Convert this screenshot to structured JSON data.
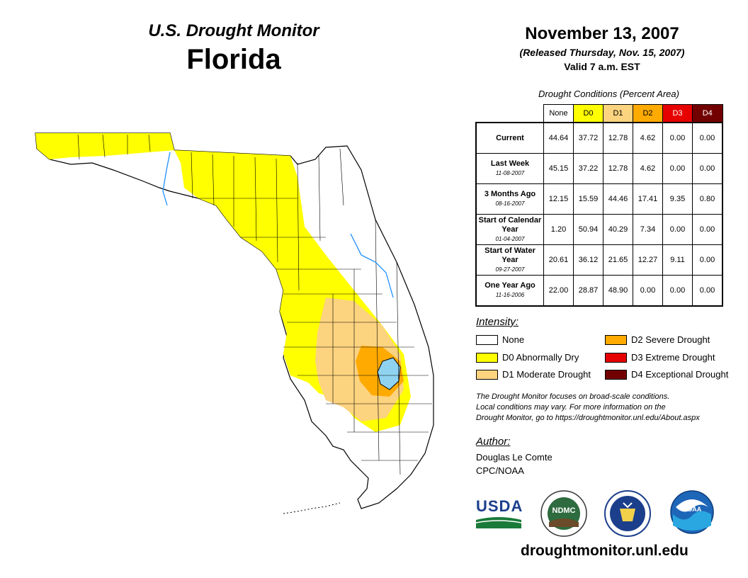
{
  "header": {
    "brand": "U.S. Drought Monitor",
    "state": "Florida",
    "date": "November 13, 2007",
    "released": "(Released Thursday, Nov. 15, 2007)",
    "valid": "Valid 7 a.m. EST"
  },
  "table": {
    "title": "Drought Conditions (Percent Area)",
    "columns": [
      "None",
      "D0",
      "D1",
      "D2",
      "D3",
      "D4"
    ],
    "rows": [
      {
        "label": "Current",
        "date": "",
        "values": [
          "44.64",
          "37.72",
          "12.78",
          "4.62",
          "0.00",
          "0.00"
        ]
      },
      {
        "label": "Last Week",
        "date": "11-08-2007",
        "values": [
          "45.15",
          "37.22",
          "12.78",
          "4.62",
          "0.00",
          "0.00"
        ]
      },
      {
        "label": "3 Months Ago",
        "date": "08-16-2007",
        "values": [
          "12.15",
          "15.59",
          "44.46",
          "17.41",
          "9.35",
          "0.80"
        ]
      },
      {
        "label": "Start of Calendar Year",
        "date": "01-04-2007",
        "values": [
          "1.20",
          "50.94",
          "40.29",
          "7.34",
          "0.00",
          "0.00"
        ]
      },
      {
        "label": "Start of Water Year",
        "date": "09-27-2007",
        "values": [
          "20.61",
          "36.12",
          "21.65",
          "12.27",
          "9.11",
          "0.00"
        ]
      },
      {
        "label": "One Year Ago",
        "date": "11-16-2006",
        "values": [
          "22.00",
          "28.87",
          "48.90",
          "0.00",
          "0.00",
          "0.00"
        ]
      }
    ]
  },
  "legend": {
    "title": "Intensity:",
    "items": [
      {
        "label": "None",
        "color": "#ffffff"
      },
      {
        "label": "D0 Abnormally Dry",
        "color": "#ffff00"
      },
      {
        "label": "D1 Moderate Drought",
        "color": "#fcd37f"
      },
      {
        "label": "D2 Severe Drought",
        "color": "#ffaa00"
      },
      {
        "label": "D3 Extreme Drought",
        "color": "#e60000"
      },
      {
        "label": "D4 Exceptional Drought",
        "color": "#730000"
      }
    ]
  },
  "note": {
    "line1": "The Drought Monitor focuses on broad-scale conditions.",
    "line2": "Local conditions may vary. For more information on the",
    "line3": "Drought Monitor, go to https://droughtmonitor.unl.edu/About.aspx"
  },
  "author": {
    "title": "Author:",
    "name": "Douglas Le Comte",
    "org": "CPC/NOAA"
  },
  "logos": {
    "usda": "USDA",
    "ndmc": "NDMC",
    "noaa": "NOAA"
  },
  "website": "droughtmonitor.unl.edu",
  "colors": {
    "none": "#ffffff",
    "d0": "#ffff00",
    "d1": "#fcd37f",
    "d2": "#ffaa00",
    "d3": "#e60000",
    "d4": "#730000",
    "water": "#8fd3f0"
  }
}
